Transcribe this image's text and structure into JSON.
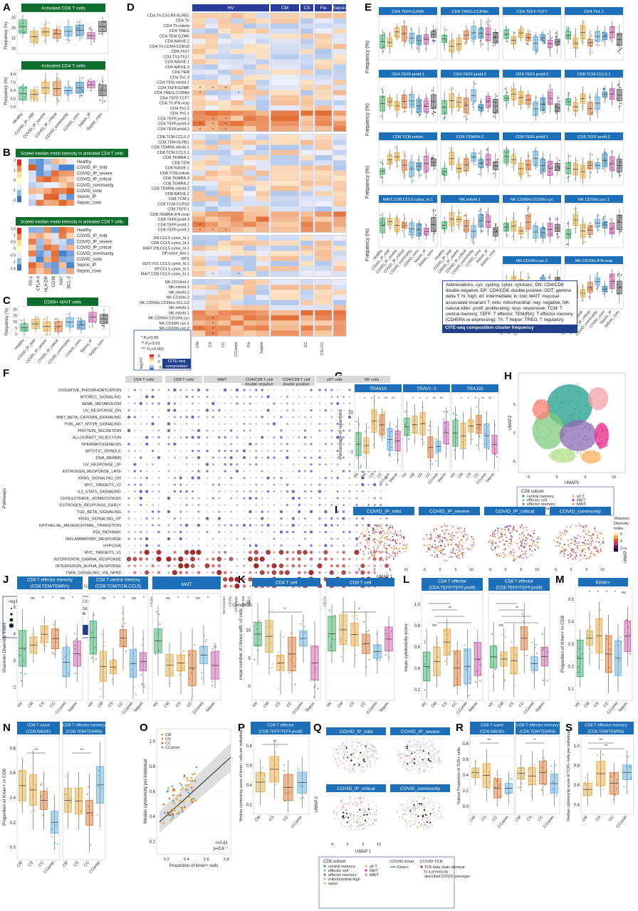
{
  "conditions_long": [
    "Healthy",
    "COVID_IP_mild",
    "COVID_IP_severe",
    "COVID_IP_critical",
    "COVID_community",
    "COVID_conv",
    "Sepsis_IP",
    "Sepsis_conv"
  ],
  "conditions_short": [
    "CM",
    "CS",
    "CC",
    "CComm",
    "Flu",
    "Sepsis"
  ],
  "panelA": {
    "label": "A",
    "top_title": "Activated CD8 T cells",
    "bottom_title": "Activated CD4 T cells",
    "ylabel": "Frequency (%)",
    "top_ticks": [
      "10",
      "15",
      "20",
      "25"
    ],
    "bottom_ticks": [
      "1.0",
      "3.0",
      "5.0",
      "7.0",
      "9.0"
    ]
  },
  "panelB": {
    "label": "B",
    "top_title": "Scaled median metal intensity in activated CD4 T cells",
    "bottom_title": "Scaled median metal intensity in activated CD8 T cells",
    "markers": [
      "PD-1",
      "CTLA-4",
      "HLA-DR",
      "CD38",
      "Ki67",
      "BCL-2"
    ],
    "scale_top": [
      "2",
      "1",
      "0",
      "-1",
      "-2"
    ],
    "scale_bottom": [
      "1.5",
      "1",
      "0.5",
      "0",
      "-0.5",
      "-1",
      "-1.5"
    ]
  },
  "panelC": {
    "label": "C",
    "title": "CD69+ MAIT cells",
    "ylabel": "Frequency (%)",
    "ticks": [
      "0",
      "5",
      "10",
      "15",
      "20"
    ]
  },
  "panelD": {
    "label": "D",
    "groups": [
      "HV",
      "CM",
      "CS",
      "Flu",
      "Sepsis"
    ],
    "rows": [
      "CD4.Th.CXCR5.KLRB1",
      "CD4.Th",
      "CD4.Th.mitohi",
      "CD4.TREG",
      "CD4.TEM.GZMK",
      "CD4.NAIVE.2",
      "CD4.Th.CCR4.CCR10",
      "CD4.Th17",
      "CD4.Th1/Th17",
      "CD4.NAIVE.1",
      "CD4.NAIVE.3",
      "CD4.TEM",
      "CD4.Th1.3",
      "CD4.TEM.mitohi.1",
      "CD4.TEFF.GZMK",
      "CD4.TREG.CCR4hi",
      "CD4.TEFF.TCF7",
      "CD4.Th.IFN.resp",
      "CD4.Th1.2",
      "CD4.Th1.1",
      "CD4.TEFF.prolif.1",
      "CD4.TEFF.prolif.3",
      "CD4.TEFF.prolif.2",
      "CD8.TCM.CCL5.2",
      "CD8.TEM.KLRB1",
      "CD8.TEMRA.mitohi.1",
      "CD8.TCM.CCL5.1",
      "CD8.TEMRA.1",
      "CD8.TEM",
      "CD8.NAIVE.1",
      "CD8.TCM.mitohi",
      "CD8.TEMRA.3",
      "CD8.TEMRA.2",
      "CD8.TEMRA.mitohi.2",
      "CD8.NAIVE.2",
      "CD8.TCM.1",
      "CD8.TCM.CCR10",
      "CD8.TEFF.1",
      "CD8.TEMRA.IFN.resp",
      "CD8.TEFF.prolif.3",
      "CD8.TEFF.prolif.1",
      "CD8.TEFF.prolif.2",
      "DN.CCL5.cytox_hi.1",
      "CD8.CCL5.cytox_hi.1",
      "MAIT.DN.CCL5.cytox_hi.1",
      "DP.naive_like.1",
      "DP.1",
      "GDT.VD1.CCL5.cytox_hi.1",
      "DP.CCL5.cytox_hi.1",
      "MAIT.CD8.CCL5.cytox_lo.1",
      "NK.CD16int.1",
      "NK.mitohi.1",
      "NK.mitohi.2",
      "NK.CD16hi.2",
      "NK.CD56hi.CD16int.XCL1/2",
      "NK.mitohi.1",
      "NK.mitohi.1",
      "NK.CD56hi.CD16hi.cyc",
      "NK.CD16hi.cyc.1",
      "NK.CD16hi.cyc.2",
      "NK.CD16hi.IFN.resp"
    ],
    "cols": [
      "CM",
      "CS",
      "CC",
      "CComm",
      "Flu",
      "Sepsis",
      "CC",
      "CS+CC"
    ],
    "legend_sig": [
      "* Pₐ<0.05",
      "** Pₐ<0.01",
      "*** Pₐ<0.001"
    ],
    "legend_scale": [
      "5",
      "0",
      "-5"
    ],
    "legend_axis": "log₂FC",
    "legend_title": "CITE-seq composition"
  },
  "panelE": {
    "label": "E",
    "titles": [
      "CD4.TEFF.GZMK",
      "CD4.TREG.CCR4hi",
      "CD4.TEFF.TCF7",
      "CD4.Th1.1",
      "CD4.TEFF.prolif.1",
      "CD4.TEFF.prolif.2",
      "CD4.TEFF.prolif.3",
      "CD8.TCM.CCL5.1",
      "CD8.TCM.mitohi",
      "CD8.TEMRA.2",
      "CD8.TEFF.prolif.1",
      "CD8.TEFF.prolif.2",
      "MAIT.CD8.CCL5.cytox_lo.1",
      "NK.mitohi.1",
      "NK.CD56hi.CD16hi.cyc",
      "NK.CD16hi.cyc.1",
      "NK.CD16hi.cyc.2",
      "NK.CD16hi.IFN.resp"
    ],
    "ylabel": "Frequency (%)",
    "notes": "Abbreviations. cyc: cycling; cytox: cytotoxic; DN: CD4/CD8 double negative; DP: CD4/CD8: double positive; GDT: gamma delta T; hi: high; int: intermediate; lo: low; MAIT: mucosal associated invariant T; mito: mitochondrial; neg: negative; NK: natural killer; prolif: proliferating; resp: responsive; TCM: T central memory; TEFF: T effector; TEM(RA): T effector memory (CD45RA re-expressing); Th: T helper; TREG: T regulatory",
    "footer": "CITE-seq composition cluster frequency"
  },
  "panelF": {
    "label": "F",
    "groups": [
      "CD4 T cells",
      "CD8 T cells",
      "MAIT",
      "CD4/CD8 T cell double negative",
      "CD4/CD8 T cell double positive",
      "γδT cells",
      "NK cells"
    ],
    "pathways": [
      "OXIDATIVE_PHOSPHORYLATION",
      "MTORC1_SIGNALING",
      "HEME_METABOLISM",
      "UV_RESPONSE_DN",
      "WNT_BETA_CATENIN_SIGNALING",
      "PI3K_AKT_MTOR_SIGNALING",
      "PROTEIN_SECRETION",
      "ALLOGRAFT_REJECTION",
      "SPERMATOGENESIS",
      "MITOTIC_SPINDLE",
      "DNA_REPAIR",
      "UV_RESPONSE_UP",
      "ESTROGEN_RESPONSE_LATE",
      "KRAS_SIGNALING_DN",
      "MYC_TARGETS_V2",
      "IL2_STAT5_SIGNALING",
      "CHOLESTEROL_HOMEOSTASIS",
      "ESTROGEN_RESPONSE_EARLY",
      "TGF_BETA_SIGNALING",
      "KRAS_SIGNALING_UP",
      "EPITHELIAL_MESENCHYMAL_TRANSITION",
      "P53_PATHWAY",
      "INFLAMMATORY_RESPONSE",
      "HYPOXIA",
      "MYC_TARGETS_V1",
      "INTERFERON_GAMMA_RESPONSE",
      "INTERFERON_ALPHA_RESPONSE",
      "TNFA_SIGNALING_VIA_NFKB",
      "E2F_TARGETS",
      "G2M_CHECKPOINT"
    ],
    "ylabel": "Pathways",
    "xlabel": "Condition",
    "legend_size_title": "−log10(pval)",
    "legend_sizes": [
      "2.5",
      "5.0",
      "7.5",
      "10.0"
    ],
    "legend_nes_title": "NES",
    "legend_nes": [
      "2",
      "1",
      "0",
      "−1",
      "−2"
    ],
    "legend_padj_title": "padj < 0.01",
    "legend_padj": [
      "FALSE",
      "TRUE"
    ],
    "legend_footer": "CITE-seq differential"
  },
  "panelG": {
    "label": "G",
    "titles": [
      "TRAV10",
      "TRAV1−2",
      "TRAJ33"
    ],
    "ylabel": "Percentage of repertoire",
    "ticks": [
      "1",
      "10"
    ],
    "conds": [
      "HV",
      "CM",
      "CS",
      "CC",
      "CComm",
      "Sepsis"
    ]
  },
  "panelH": {
    "label": "H",
    "xlabel": "UMAP1",
    "ylabel": "UMAP2",
    "ticks_x": [
      "-5",
      "0",
      "5",
      "10"
    ],
    "ticks_y": [
      "-5",
      "0",
      "5"
    ],
    "legend_title": "CD8 subset",
    "legend": [
      "central memory",
      "effector cell",
      "effector memory",
      "mitochondrial high",
      "naive",
      "γδ T",
      "iNKT",
      "MAIT"
    ]
  },
  "panelI": {
    "label": "I",
    "titles": [
      "COVID_IP_mild",
      "COVID_IP_severe",
      "COVID_IP_critical",
      "COVID_community"
    ],
    "xlabel": "UMAP 1",
    "ylabel": "UMAP 2",
    "ticks": [
      "-5",
      "0",
      "5",
      "10"
    ],
    "scale_title": "Shannon Diversity Index",
    "scale": [
      "6",
      "4",
      "2"
    ]
  },
  "panelJ": {
    "label": "J",
    "titles": [
      "CD8 T effector memory (CD8.TEM/TEMRA)",
      "CD8 T central memory (CD8.TCM/TCM.CCL5)",
      "MAIT"
    ],
    "ylabel": "Shannon Diversity Index",
    "ticks": [
      "2",
      "3",
      "4",
      "5"
    ]
  },
  "panelK": {
    "label": "K",
    "titles": [
      "CD4 T cell",
      "CD8 T cell"
    ],
    "ylabel": "mean number of clones with >2 cells",
    "ticks": [
      "0",
      "5",
      "10",
      "15"
    ]
  },
  "panelL": {
    "label": "L",
    "titles": [
      "CD4 T effector (CD4.TEFF/TEFF.prolif)",
      "CD8 T effector (CD8.TEFF/TEFF.prolif)"
    ],
    "ylabel": "mean cytotoxicity score",
    "ticks": [
      "0.2",
      "0.4",
      "0.6",
      "0.8",
      "1.0"
    ]
  },
  "panelM": {
    "label": "M",
    "title": "Kmer+",
    "ylabel": "Proportion of Kmer+ in CD8",
    "ticks": [
      "0.1",
      "0.2",
      "0.3",
      "0.4",
      "0.5"
    ]
  },
  "panelN": {
    "label": "N",
    "titles": [
      "CD8 T naive (CD8.NAIVE)",
      "CD8 T effector memory (CD8.TEM/TEMRA)"
    ],
    "ylabel": "Proportion of Kmer+ in CD8",
    "ticks": [
      "0.0",
      "0.2",
      "0.4",
      "0.6",
      "0.8"
    ],
    "conds": [
      "CM",
      "CS",
      "CC",
      "CComm"
    ]
  },
  "panelO": {
    "label": "O",
    "legend": [
      "CM",
      "CS",
      "CC",
      "CComm"
    ],
    "xlabel": "Proportion of kmer+ cells",
    "ylabel": "Median cytotoxicity per individual",
    "ticks_x": [
      "0.2",
      "0.4",
      "0.6",
      "0.8"
    ],
    "ticks_y": [
      "0.2",
      "0.4",
      "0.6",
      "0.8",
      "1.0"
    ],
    "stat1": "r=0.61",
    "stat2": "p=3.6⁻⁷"
  },
  "panelP": {
    "label": "P",
    "title": "CD8 T effector (CD8.TEFF/TEFF.prolif)",
    "ylabel": "Median cytotoxicity score of kmer+ cells per individual",
    "ticks": [
      "0.2",
      "0.4",
      "0.6",
      "0.8"
    ]
  },
  "panelQ": {
    "label": "Q",
    "titles": [
      "COVID_IP_mild",
      "COVID_IP_severe",
      "COVID_IP_critical",
      "COVID_community"
    ],
    "xlabel": "UMAP 1",
    "ylabel": "UMAP 2",
    "ticks": [
      "-5",
      "0",
      "5",
      "10"
    ],
    "legend_title": "CD8 subset",
    "legend": [
      "central memory",
      "effector cell",
      "effector memory",
      "mitochondrial high",
      "naive",
      "γδ T",
      "iNKT",
      "MAIT"
    ],
    "kmer_title": "COVID Kmer",
    "kmer": "Kmer+",
    "tcr_title": "COVID TCR",
    "tcr": "TCR beta chain identical to a previously described COVID clonotype"
  },
  "panelR": {
    "label": "R",
    "titles": [
      "CD8 T naive (CD8.NAIVE)",
      "CD8 T effector memory (CD8.TEM/TEMRA)"
    ],
    "ylabel": "Subset Proportion of TCR+ cells",
    "ticks": [
      "0.0",
      "0.2",
      "0.4",
      "0.6",
      "0.8"
    ]
  },
  "panelS": {
    "label": "S",
    "title": "CD8 T effector memory (CD8.TEM/TEMRA)",
    "ylabel": "Median cytotoxicity score of TCR+ cells per individual",
    "ticks": [
      "0.4",
      "0.6",
      "0.8",
      "1.0"
    ]
  },
  "sig": {
    "ns": "ns",
    "s1": "*",
    "s2": "**",
    "s4": "****"
  },
  "colors": {
    "title_blue": "#1d6fb8",
    "title_green": "#0d6e2c",
    "healthy": "#27a55a",
    "mild": "#d6a63a",
    "severe": "#e8a02c",
    "critical": "#d2691e",
    "community": "#4fa3d9",
    "conv": "#1f78b4",
    "sepsis_ip": "#c04ba0",
    "sepsis_conv": "#444444"
  }
}
